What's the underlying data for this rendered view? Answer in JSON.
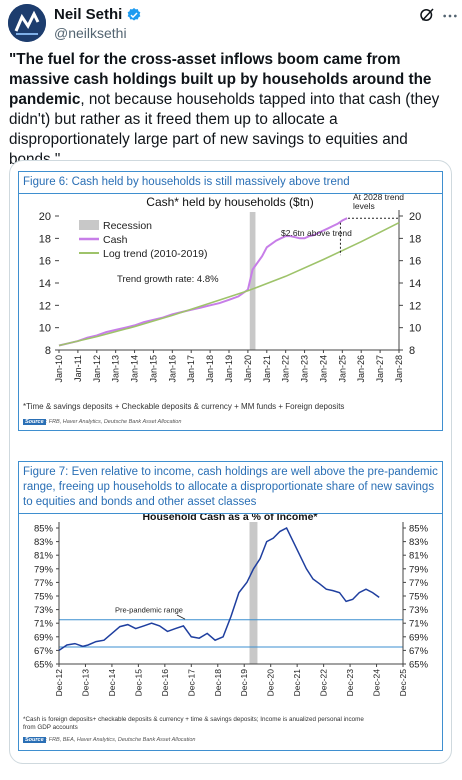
{
  "author": {
    "name": "Neil Sethi",
    "handle": "@neilksethi"
  },
  "tweet": {
    "quote_open": "\"",
    "bold": "The fuel for the cross-asset inflows boom came from massive cash holdings built up by households around the pandemic",
    "rest": ", not because households tapped into that cash (they didn't) but rather as it freed them up to allocate a disproportionately large part of new savings to equities and bonds.\""
  },
  "figure6": {
    "heading": "Figure 6: Cash held by households is still massively above trend",
    "footnote": "*Time & savings deposits + Checkable deposits & currency + MM funds + Foreign deposits",
    "source_label": "Source",
    "source_text": ": FRB, Haver Analytics, Deutsche Bank Asset Allocation"
  },
  "figure7": {
    "heading": "Figure 7: Even relative to income, cash holdings are well above the pre-pandemic range, freeing up households to allocate a disproportionate share of new savings to equities and bonds and other asset classes",
    "footnote_line1": "*Cash is foreign deposits+ checkable deposits & currency + time & savings deposits; Income is anualized personal income",
    "footnote_line2": "from GDP accounts",
    "source_label": "Source",
    "source_text": ": FRB, BEA, Haver Analytics, Deutsche Bank Asset Allocation"
  },
  "chart_data": [
    {
      "type": "line",
      "title": "Cash* held by households ($tn)",
      "x_tick_labels": [
        "Jan-10",
        "Jan-11",
        "Jan-12",
        "Jan-13",
        "Jan-14",
        "Jan-15",
        "Jan-16",
        "Jan-17",
        "Jan-18",
        "Jan-19",
        "Jan-20",
        "Jan-21",
        "Jan-22",
        "Jan-23",
        "Jan-24",
        "Jan-25",
        "Jan-26",
        "Jan-27",
        "Jan-28"
      ],
      "ylim": [
        8,
        20
      ],
      "y_ticks": [
        8,
        10,
        12,
        14,
        16,
        18,
        20
      ],
      "legend": [
        "Recession",
        "Cash",
        "Log trend (2010-2019)"
      ],
      "legend_placement": "top-left",
      "annotations": [
        "Trend growth rate: 4.8%",
        "$2.6tn above trend",
        "At 2028 trend levels"
      ],
      "recession": [
        2020.1,
        2020.4
      ],
      "series": [
        {
          "name": "Cash",
          "color": "#c77ee8",
          "x": [
            2010.0,
            2010.5,
            2011.0,
            2011.5,
            2012.0,
            2012.5,
            2013.0,
            2013.5,
            2014.0,
            2014.5,
            2015.0,
            2015.5,
            2016.0,
            2016.5,
            2017.0,
            2017.5,
            2018.0,
            2018.5,
            2019.0,
            2019.5,
            2020.0,
            2020.25,
            2020.5,
            2020.75,
            2021.0,
            2021.25,
            2021.5,
            2021.75,
            2022.0,
            2022.25,
            2022.5,
            2022.75,
            2023.0,
            2023.25,
            2023.5,
            2023.75,
            2024.0,
            2024.25,
            2024.5,
            2024.75,
            2025.0,
            2025.25
          ],
          "y": [
            8.4,
            8.6,
            8.8,
            9.1,
            9.3,
            9.6,
            9.8,
            10.0,
            10.2,
            10.5,
            10.7,
            10.9,
            11.2,
            11.4,
            11.6,
            11.8,
            12.0,
            12.2,
            12.5,
            12.8,
            13.4,
            15.2,
            15.8,
            16.4,
            17.2,
            17.5,
            17.8,
            18.0,
            18.2,
            18.2,
            18.1,
            18.0,
            18.0,
            18.2,
            18.3,
            18.5,
            18.7,
            18.9,
            19.1,
            19.3,
            19.6,
            19.8
          ]
        },
        {
          "name": "Log trend (2010-2019)",
          "color": "#9ec36a",
          "x": [
            2010,
            2012,
            2014,
            2016,
            2018,
            2020,
            2022,
            2024,
            2026,
            2028
          ],
          "y": [
            8.4,
            9.2,
            10.1,
            11.1,
            12.2,
            13.3,
            14.6,
            16.1,
            17.7,
            19.4
          ]
        }
      ]
    },
    {
      "type": "line",
      "title": "Household Cash as a % of Income*",
      "x_tick_labels": [
        "Dec-12",
        "Dec-13",
        "Dec-14",
        "Dec-15",
        "Dec-16",
        "Dec-17",
        "Dec-18",
        "Dec-19",
        "Dec-20",
        "Dec-21",
        "Dec-22",
        "Dec-23",
        "Dec-24",
        "Dec-25"
      ],
      "ylim": [
        65,
        85
      ],
      "y_ticks": [
        "65%",
        "67%",
        "69%",
        "71%",
        "73%",
        "75%",
        "77%",
        "79%",
        "81%",
        "83%",
        "85%"
      ],
      "annotations": [
        "Pre-pandemic range"
      ],
      "pre_pandemic_range": [
        67.5,
        71.5
      ],
      "recession": [
        2020.1,
        2020.4
      ],
      "series": [
        {
          "name": "Cash % of income",
          "color": "#1f3f9f",
          "x": [
            2012.9,
            2013.2,
            2013.5,
            2013.8,
            2014.0,
            2014.3,
            2014.6,
            2014.9,
            2015.2,
            2015.5,
            2015.8,
            2016.1,
            2016.4,
            2016.7,
            2017.0,
            2017.3,
            2017.6,
            2017.9,
            2018.2,
            2018.5,
            2018.8,
            2019.1,
            2019.4,
            2019.7,
            2020.0,
            2020.25,
            2020.5,
            2020.75,
            2021.0,
            2021.25,
            2021.5,
            2021.75,
            2022.0,
            2022.25,
            2022.5,
            2022.75,
            2023.0,
            2023.25,
            2023.5,
            2023.75,
            2024.0,
            2024.25,
            2024.5,
            2024.75,
            2025.0
          ],
          "y": [
            67.0,
            67.8,
            68.0,
            67.6,
            67.8,
            68.3,
            68.5,
            69.5,
            70.5,
            70.8,
            70.2,
            70.6,
            71.0,
            70.6,
            69.8,
            70.2,
            70.6,
            69.0,
            68.8,
            69.5,
            68.5,
            69.0,
            72.0,
            75.5,
            77.0,
            79.0,
            80.5,
            83.0,
            83.5,
            84.5,
            85.0,
            83.0,
            81.0,
            79.0,
            77.5,
            76.8,
            76.0,
            75.8,
            75.5,
            74.2,
            74.5,
            75.5,
            76.0,
            75.5,
            74.8
          ]
        }
      ]
    }
  ]
}
